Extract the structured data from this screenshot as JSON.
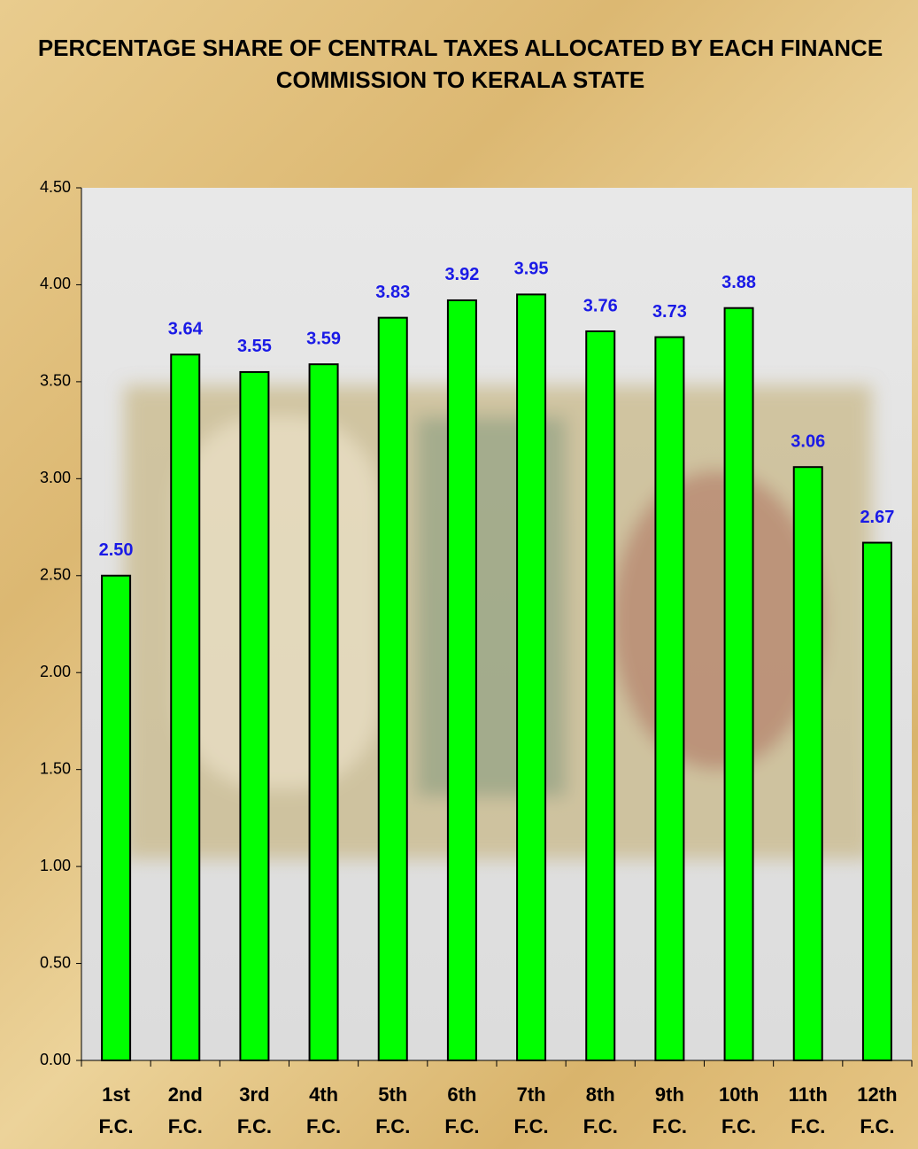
{
  "chart_data": {
    "type": "bar",
    "title": "PERCENTAGE SHARE OF CENTRAL TAXES ALLOCATED BY EACH FINANCE COMMISSION TO KERALA STATE",
    "categories": [
      "1st F.C.",
      "2nd F.C.",
      "3rd F.C.",
      "4th F.C.",
      "5th F.C.",
      "6th F.C.",
      "7th F.C.",
      "8th F.C.",
      "9th F.C.",
      "10th F.C.",
      "11th F.C.",
      "12th F.C."
    ],
    "values": [
      2.5,
      3.64,
      3.55,
      3.59,
      3.83,
      3.92,
      3.95,
      3.76,
      3.73,
      3.88,
      3.06,
      2.67
    ],
    "value_labels": [
      "2.50",
      "3.64",
      "3.55",
      "3.59",
      "3.83",
      "3.92",
      "3.95",
      "3.76",
      "3.73",
      "3.88",
      "3.06",
      "2.67"
    ],
    "color": "#00ff00",
    "label_color": "#1a1ae6",
    "ylim": [
      0,
      4.5
    ],
    "yticks": [
      {
        "value": 0,
        "label": "0.00"
      },
      {
        "value": 0.5,
        "label": "0.50"
      },
      {
        "value": 1,
        "label": "1.00"
      },
      {
        "value": 1.5,
        "label": "1.50"
      },
      {
        "value": 2,
        "label": "2.00"
      },
      {
        "value": 2.5,
        "label": "2.50"
      },
      {
        "value": 3,
        "label": "3.00"
      },
      {
        "value": 3.5,
        "label": "3.50"
      },
      {
        "value": 4,
        "label": "4.00"
      },
      {
        "value": 4.5,
        "label": "4.50"
      }
    ]
  }
}
